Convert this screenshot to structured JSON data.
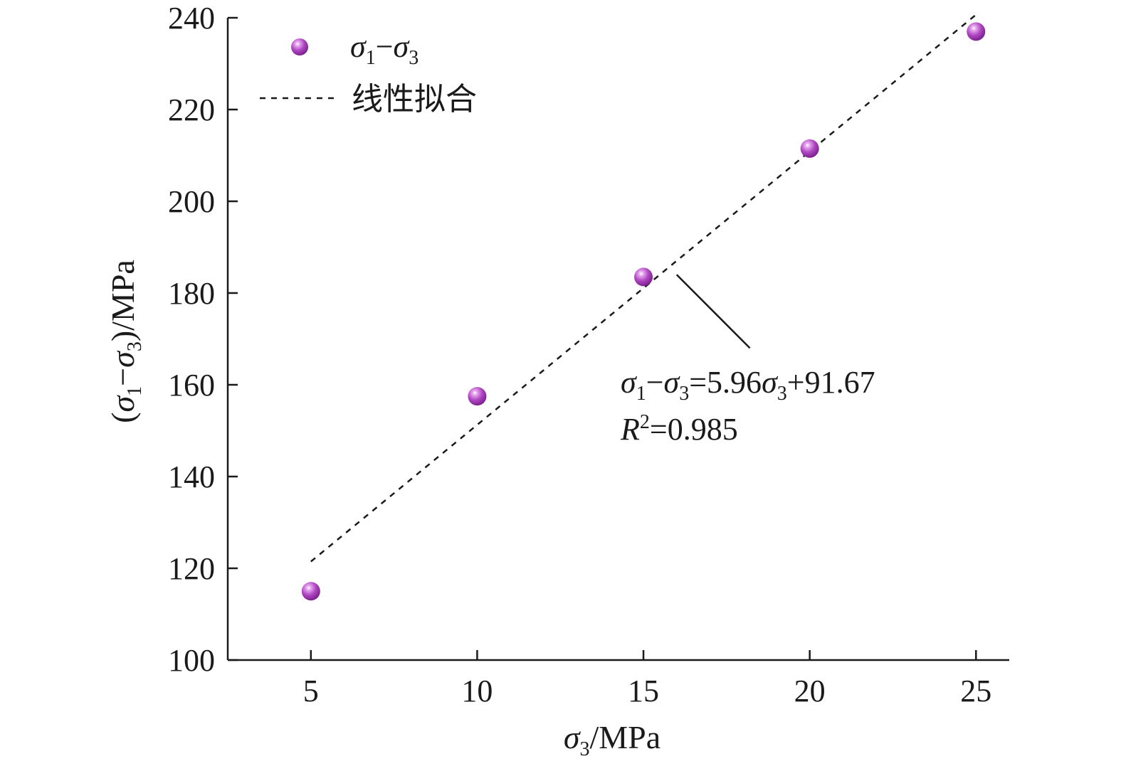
{
  "chart_data": {
    "type": "scatter",
    "xlim": [
      2.5,
      26
    ],
    "ylim": [
      100,
      240
    ],
    "xticks": [
      5,
      10,
      15,
      20,
      25
    ],
    "yticks": [
      100,
      120,
      140,
      160,
      180,
      200,
      220,
      240
    ],
    "series": [
      {
        "name": "σ1−σ3",
        "type": "scatter",
        "x": [
          5,
          10,
          15,
          20,
          25
        ],
        "y": [
          115,
          157.5,
          183.5,
          211.5,
          237
        ],
        "color": "#a23bb5"
      },
      {
        "name": "线性拟合",
        "type": "line",
        "style": "dashed",
        "x": [
          5,
          25
        ],
        "y": [
          121.47,
          240.67
        ],
        "color": "#1a1a1a"
      }
    ],
    "legend": {
      "position": "top-left",
      "scatter_label": {
        "sym1": "σ",
        "sub1": "1",
        "minus": "−",
        "sym2": "σ",
        "sub2": "3"
      },
      "fit_label": "线性拟合"
    },
    "xlabel": {
      "sym": "σ",
      "sub": "3",
      "unit": "/MPa"
    },
    "ylabel": {
      "open": "(",
      "sym1": "σ",
      "sub1": "1",
      "minus": "−",
      "sym2": "σ",
      "sub2": "3",
      "close": ")/MPa"
    },
    "annotation": {
      "equation": {
        "sym1": "σ",
        "sub1": "1",
        "minus": "−",
        "sym2": "σ",
        "sub2": "3",
        "eq": "=5.96",
        "sym3": "σ",
        "sub3": "3",
        "rest": "+91.67"
      },
      "r2": {
        "sym": "R",
        "sup": "2",
        "rest": "=0.985"
      },
      "pointer_from": [
        18.2,
        168
      ],
      "pointer_to": [
        16,
        184
      ]
    }
  }
}
